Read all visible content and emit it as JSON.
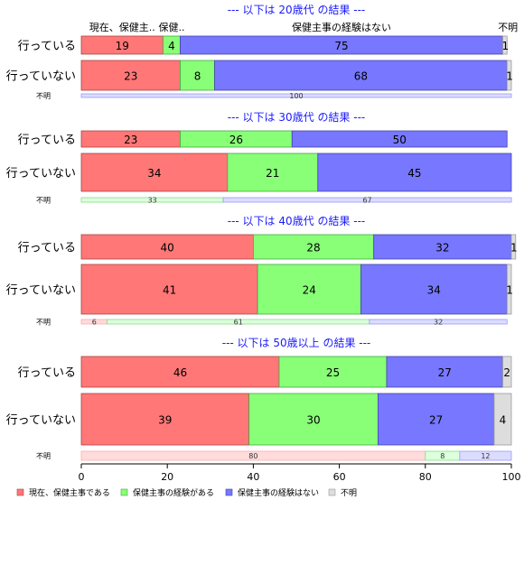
{
  "chart_data": {
    "type": "bar",
    "orientation": "horizontal",
    "stacked": "percent",
    "colors": [
      "#ff7777",
      "#88ff77",
      "#7777ff",
      "#dddddd"
    ],
    "x_ticks": [
      "0",
      "20",
      "40",
      "60",
      "80",
      "100"
    ],
    "xlim": [
      0,
      100
    ],
    "column_headers": [
      "現在、保健主..",
      "保健..",
      "保健主事の経験はない",
      "不明"
    ],
    "legend": {
      "placement": "bottom-left",
      "entries": [
        "現在、保健主事である",
        "保健主事の経験がある",
        "保健主事の経験はない",
        "不明"
      ]
    },
    "panels": [
      {
        "title": "--- 以下は 20歳代 の結果 ---",
        "rows": [
          {
            "label": "行っている",
            "values": [
              19,
              4,
              75,
              1
            ]
          },
          {
            "label": "行っていない",
            "values": [
              23,
              8,
              68,
              1
            ]
          },
          {
            "label": "不明",
            "values": [
              0,
              0,
              100,
              0
            ],
            "small": true
          }
        ]
      },
      {
        "title": "--- 以下は 30歳代 の結果 ---",
        "rows": [
          {
            "label": "行っている",
            "values": [
              23,
              26,
              50,
              0
            ]
          },
          {
            "label": "行っていない",
            "values": [
              34,
              21,
              45,
              0
            ]
          },
          {
            "label": "不明",
            "values": [
              0,
              33,
              67,
              0
            ],
            "small": true
          }
        ]
      },
      {
        "title": "--- 以下は 40歳代 の結果 ---",
        "rows": [
          {
            "label": "行っている",
            "values": [
              40,
              28,
              32,
              1
            ]
          },
          {
            "label": "行っていない",
            "values": [
              41,
              24,
              34,
              1
            ]
          },
          {
            "label": "不明",
            "values": [
              6,
              61,
              32,
              0
            ],
            "small": true
          }
        ]
      },
      {
        "title": "--- 以下は 50歳以上 の結果 ---",
        "rows": [
          {
            "label": "行っている",
            "values": [
              46,
              25,
              27,
              2
            ]
          },
          {
            "label": "行っていない",
            "values": [
              39,
              30,
              27,
              4
            ]
          },
          {
            "label": "不明",
            "values": [
              80,
              8,
              12,
              0
            ],
            "small": true
          }
        ]
      }
    ]
  }
}
